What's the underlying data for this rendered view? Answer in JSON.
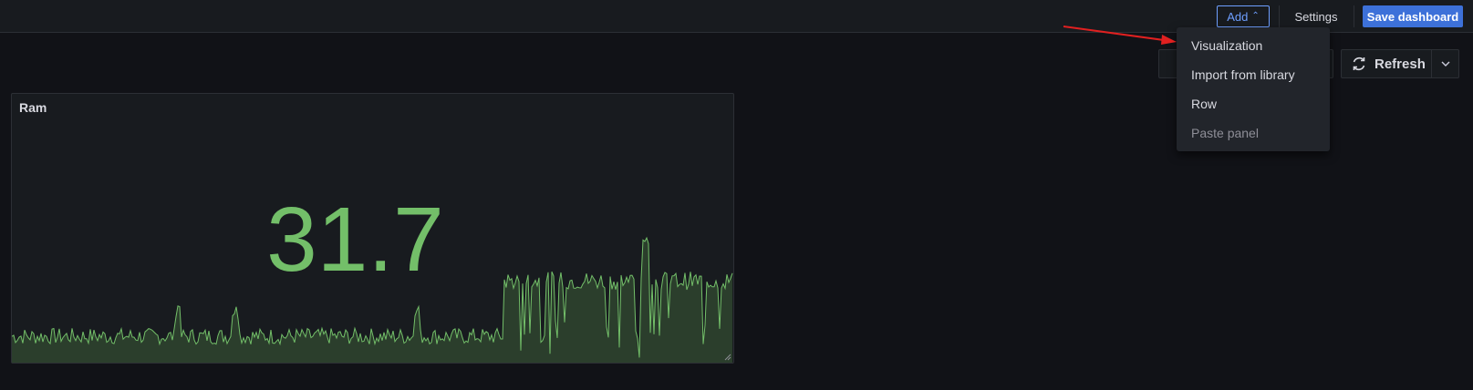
{
  "toolbar": {
    "add_label": "Add",
    "settings_label": "Settings",
    "save_label": "Save dashboard",
    "refresh_label": "Refresh"
  },
  "add_menu": {
    "items": [
      {
        "label": "Visualization",
        "disabled": false
      },
      {
        "label": "Import from library",
        "disabled": false
      },
      {
        "label": "Row",
        "disabled": false
      },
      {
        "label": "Paste panel",
        "disabled": true
      }
    ]
  },
  "panel": {
    "title": "Ram",
    "value": "31.7",
    "value_color": "#73bf69",
    "sparkline_color": "#73bf69",
    "fill_color": "#2b3e2c"
  },
  "colors": {
    "background": "#111217",
    "primary": "#3d71d9",
    "accent_blue": "#6e9fff",
    "annotation_arrow": "#e02020"
  },
  "icons": {
    "add_chevron": "chevron-up-icon",
    "refresh": "refresh-icon",
    "refresh_menu": "chevron-down-icon",
    "resize": "resize-handle-icon"
  }
}
